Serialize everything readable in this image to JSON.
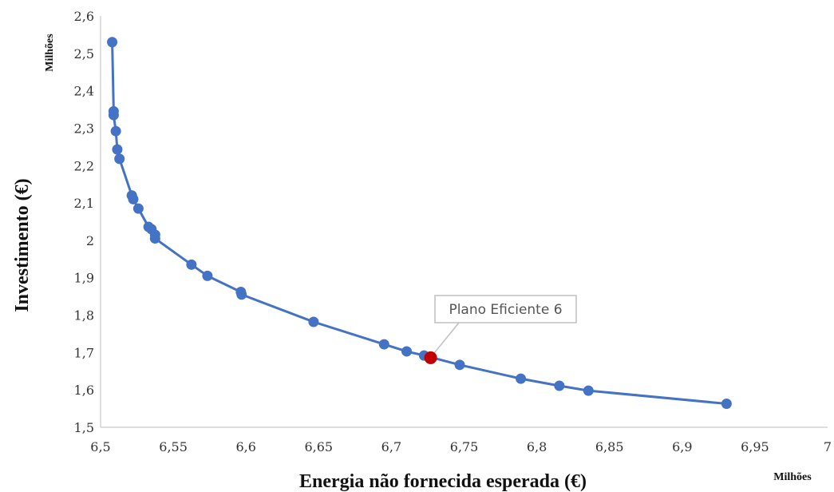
{
  "chart_data": {
    "type": "scatter",
    "title": "",
    "xlabel": "Energia não fornecida esperada (€)",
    "ylabel": "Investimento (€)",
    "x_unit": "Milhões",
    "y_unit": "Milhões",
    "xlim": [
      6.5,
      7
    ],
    "ylim": [
      1.5,
      2.6
    ],
    "x_ticks": [
      "6,5",
      "6,55",
      "6,6",
      "6,65",
      "6,7",
      "6,75",
      "6,8",
      "6,85",
      "6,9",
      "6,95",
      "7"
    ],
    "x_tick_values": [
      6.5,
      6.55,
      6.6,
      6.65,
      6.7,
      6.75,
      6.8,
      6.85,
      6.9,
      6.95,
      7.0
    ],
    "y_ticks": [
      "1,5",
      "1,6",
      "1,7",
      "1,8",
      "1,9",
      "2",
      "2,1",
      "2,2",
      "2,3",
      "2,4",
      "2,5",
      "2,6"
    ],
    "y_tick_values": [
      1.5,
      1.6,
      1.7,
      1.8,
      1.9,
      2.0,
      2.1,
      2.2,
      2.3,
      2.4,
      2.5,
      2.6
    ],
    "grid": false,
    "series": [
      {
        "color": "#4472C4",
        "points": [
          [
            6.508,
            2.53
          ],
          [
            6.509,
            2.345
          ],
          [
            6.509,
            2.335
          ],
          [
            6.5105,
            2.292
          ],
          [
            6.5115,
            2.243
          ],
          [
            6.513,
            2.218
          ],
          [
            6.5215,
            2.12
          ],
          [
            6.5225,
            2.11
          ],
          [
            6.526,
            2.085
          ],
          [
            6.533,
            2.036
          ],
          [
            6.535,
            2.03
          ],
          [
            6.5375,
            2.015
          ],
          [
            6.5375,
            2.005
          ],
          [
            6.5625,
            1.935
          ],
          [
            6.5735,
            1.905
          ],
          [
            6.5965,
            1.862
          ],
          [
            6.597,
            1.855
          ],
          [
            6.6465,
            1.782
          ],
          [
            6.695,
            1.722
          ],
          [
            6.7105,
            1.703
          ],
          [
            6.7225,
            1.692
          ],
          [
            6.747,
            1.667
          ],
          [
            6.789,
            1.63
          ],
          [
            6.8155,
            1.611
          ],
          [
            6.8355,
            1.598
          ],
          [
            6.9305,
            1.563
          ]
        ]
      }
    ],
    "highlight": {
      "x": 6.727,
      "y": 1.686,
      "label": "Plano Eficiente 6",
      "color": "#C00000"
    }
  }
}
